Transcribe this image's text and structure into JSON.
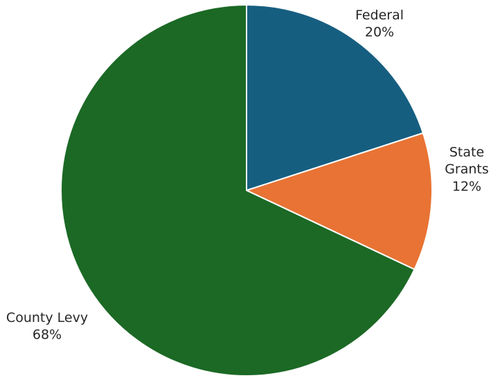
{
  "chart_data": {
    "type": "pie",
    "title": "",
    "start": "top",
    "direction": "clockwise",
    "slices": [
      {
        "label_lines": [
          "Federal"
        ],
        "value": 20,
        "value_label": "20%",
        "color": "#165e80"
      },
      {
        "label_lines": [
          "State",
          "Grants"
        ],
        "value": 12,
        "value_label": "12%",
        "color": "#e87334"
      },
      {
        "label_lines": [
          "County Levy"
        ],
        "value": 68,
        "value_label": "68%",
        "color": "#1b6925"
      }
    ],
    "legend": "none"
  }
}
